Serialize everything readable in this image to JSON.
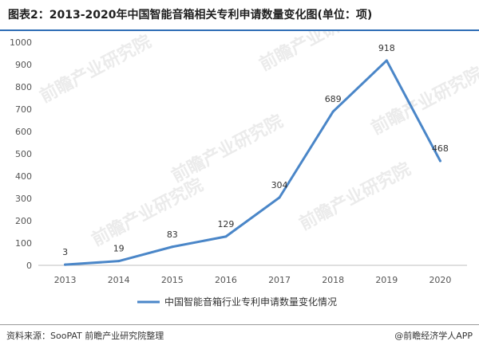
{
  "title": "图表2：2013-2020年中国智能音箱相关专利申请数量变化图(单位：项)",
  "footer": {
    "source": "资料来源：SooPAT 前瞻产业研究院整理",
    "brand": "@前瞻经济学人APP"
  },
  "watermark": "前瞻产业研究院",
  "colors": {
    "line": "#4a86c8",
    "title_rule": "#2e6db5",
    "axis": "#bfbfbf"
  },
  "chart_data": {
    "type": "line",
    "categories": [
      "2013",
      "2014",
      "2015",
      "2016",
      "2017",
      "2018",
      "2019",
      "2020"
    ],
    "series": [
      {
        "name": "中国智能音箱行业专利申请数量变化情况",
        "values": [
          3,
          19,
          83,
          129,
          304,
          689,
          918,
          468
        ]
      }
    ],
    "ylim": [
      0,
      1000
    ],
    "yticks": [
      0,
      100,
      200,
      300,
      400,
      500,
      600,
      700,
      800,
      900,
      1000
    ],
    "grid": false,
    "legend_position": "bottom",
    "data_labels": true,
    "xlabel": "",
    "ylabel": ""
  }
}
